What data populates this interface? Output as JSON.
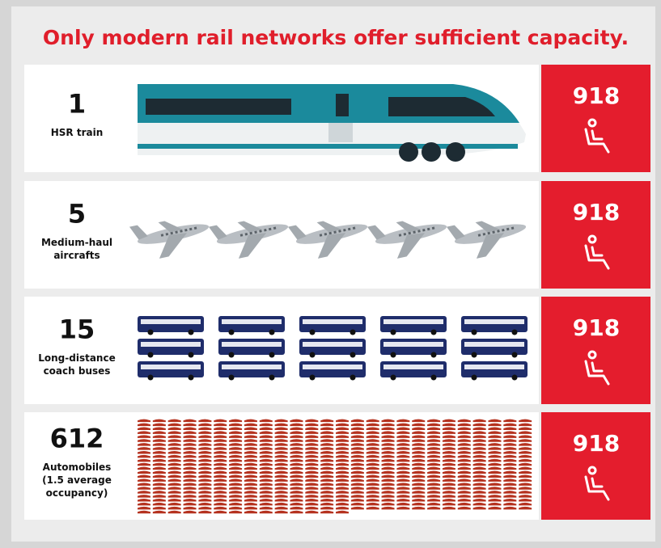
{
  "title": "Only modern rail networks offer sufficient capacity.",
  "rows": [
    {
      "count": 1,
      "icon": "train",
      "label": [
        "HSR train"
      ],
      "seats": 918
    },
    {
      "count": 5,
      "icon": "aircraft",
      "label": [
        "Medium-haul",
        "aircrafts"
      ],
      "seats": 918
    },
    {
      "count": 15,
      "icon": "bus",
      "label": [
        "Long-distance",
        "coach buses"
      ],
      "seats": 918
    },
    {
      "count": 612,
      "icon": "car",
      "label": [
        "Automobiles",
        "(1.5 average",
        "occupancy)"
      ],
      "seats": 918
    }
  ]
}
